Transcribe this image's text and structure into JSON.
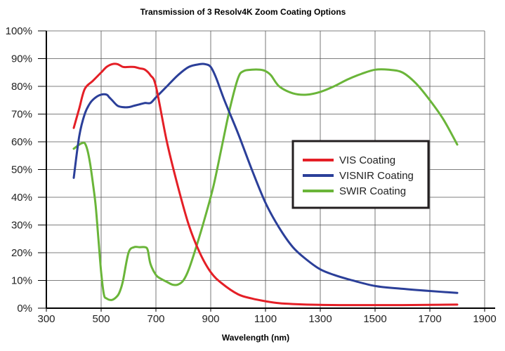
{
  "chart_data": {
    "type": "line",
    "title": "Transmission of 3 Resolv4K Zoom Coating Options",
    "xlabel": "Wavelength (nm)",
    "ylabel": "",
    "xlim": [
      300,
      1900
    ],
    "ylim": [
      0,
      100
    ],
    "x_ticks": [
      "300",
      "500",
      "700",
      "900",
      "1100",
      "1300",
      "1500",
      "1700",
      "1900"
    ],
    "y_ticks": [
      "0%",
      "10%",
      "20%",
      "30%",
      "40%",
      "50%",
      "60%",
      "70%",
      "80%",
      "90%",
      "100%"
    ],
    "grid": true,
    "legend_position": "center-right",
    "series": [
      {
        "name": "VIS Coating",
        "color": "#e41f26",
        "x": [
          400,
          420,
          440,
          470,
          500,
          520,
          540,
          560,
          580,
          600,
          620,
          640,
          660,
          680,
          700,
          740,
          780,
          820,
          860,
          900,
          940,
          1000,
          1050,
          1100,
          1150,
          1200,
          1300,
          1400,
          1500,
          1600,
          1700,
          1800
        ],
        "y": [
          65,
          72,
          79,
          82,
          85,
          87,
          88,
          88,
          87,
          87,
          87,
          86.5,
          86,
          84,
          80,
          60,
          44,
          30,
          20,
          13,
          9,
          5,
          3.5,
          2.5,
          1.8,
          1.5,
          1.2,
          1.1,
          1.1,
          1.1,
          1.2,
          1.3
        ]
      },
      {
        "name": "VISNIR Coating",
        "color": "#2b3f99",
        "x": [
          400,
          420,
          440,
          460,
          480,
          500,
          520,
          530,
          540,
          560,
          580,
          600,
          620,
          640,
          660,
          680,
          700,
          740,
          780,
          820,
          860,
          880,
          900,
          920,
          950,
          1000,
          1050,
          1100,
          1150,
          1200,
          1250,
          1300,
          1350,
          1400,
          1500,
          1600,
          1700,
          1800
        ],
        "y": [
          47,
          62,
          70,
          74,
          76,
          77,
          77,
          76,
          75,
          73,
          72.5,
          72.5,
          73,
          73.5,
          74,
          74,
          76,
          80,
          84,
          87,
          88,
          88,
          87,
          83,
          75,
          63,
          50,
          38,
          29,
          22,
          17.5,
          14,
          12,
          10.5,
          8,
          7,
          6.2,
          5.5
        ]
      },
      {
        "name": "SWIR Coating",
        "color": "#6ab539",
        "x": [
          400,
          420,
          430,
          440,
          450,
          460,
          470,
          480,
          490,
          500,
          510,
          520,
          540,
          560,
          570,
          580,
          600,
          620,
          640,
          660,
          670,
          680,
          700,
          720,
          740,
          760,
          780,
          800,
          820,
          850,
          880,
          910,
          940,
          970,
          1000,
          1020,
          1050,
          1080,
          1100,
          1120,
          1150,
          1200,
          1250,
          1300,
          1350,
          1400,
          1450,
          1500,
          1550,
          1600,
          1650,
          1700,
          1750,
          1800
        ],
        "y": [
          57.5,
          59,
          59.5,
          59.5,
          57,
          52,
          45,
          37,
          25,
          13,
          5,
          3.5,
          3,
          4.5,
          6.5,
          10,
          20,
          22,
          22,
          22,
          21,
          16,
          12,
          10.5,
          9.5,
          8.5,
          8.5,
          10,
          14,
          23,
          33,
          44,
          58,
          72,
          83,
          85.5,
          86,
          86,
          85.5,
          84,
          80,
          77.5,
          77,
          78,
          80,
          82.5,
          84.5,
          86,
          86,
          85,
          81,
          75,
          68,
          59
        ]
      }
    ]
  }
}
